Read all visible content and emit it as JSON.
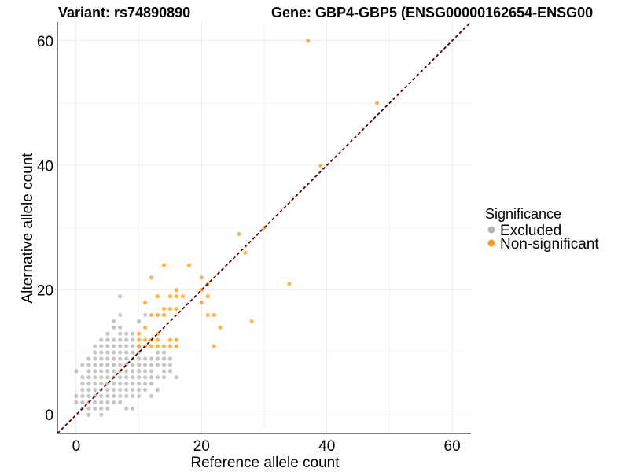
{
  "chart_data": {
    "type": "scatter",
    "title_left": "Variant: rs74890890",
    "title_right": "Gene: GBP4-GBP5 (ENSG00000162654-ENSG00",
    "xlabel": "Reference allele count",
    "ylabel": "Alternative allele count",
    "xlim": [
      -3,
      63
    ],
    "ylim": [
      -3,
      63
    ],
    "x_ticks": [
      0,
      20,
      40,
      60
    ],
    "y_ticks": [
      0,
      20,
      40,
      60
    ],
    "grid": true,
    "diagonal": {
      "type": "identity",
      "color": "#5a0000",
      "dashed": true
    },
    "legend": {
      "title": "Significance",
      "position": "right",
      "items": [
        {
          "label": "Excluded",
          "color": "#b3b3b3"
        },
        {
          "label": "Non-significant",
          "color": "#ff9a1a"
        }
      ]
    },
    "series": [
      {
        "name": "Excluded",
        "color": "#b3b3b3",
        "points": [
          [
            0,
            7
          ],
          [
            0,
            3
          ],
          [
            0,
            2
          ],
          [
            1,
            8
          ],
          [
            1,
            6
          ],
          [
            1,
            5
          ],
          [
            1,
            4
          ],
          [
            1,
            3
          ],
          [
            1,
            2
          ],
          [
            1,
            1
          ],
          [
            2,
            9
          ],
          [
            2,
            8
          ],
          [
            2,
            7
          ],
          [
            2,
            6
          ],
          [
            2,
            5
          ],
          [
            2,
            4
          ],
          [
            2,
            3
          ],
          [
            2,
            2
          ],
          [
            2,
            1
          ],
          [
            2,
            0
          ],
          [
            3,
            11
          ],
          [
            3,
            10
          ],
          [
            3,
            9
          ],
          [
            3,
            8
          ],
          [
            3,
            7
          ],
          [
            3,
            6
          ],
          [
            3,
            5
          ],
          [
            3,
            4
          ],
          [
            3,
            3
          ],
          [
            3,
            2
          ],
          [
            3,
            1
          ],
          [
            4,
            12
          ],
          [
            4,
            11
          ],
          [
            4,
            10
          ],
          [
            4,
            9
          ],
          [
            4,
            8
          ],
          [
            4,
            7
          ],
          [
            4,
            6
          ],
          [
            4,
            5
          ],
          [
            4,
            4
          ],
          [
            4,
            3
          ],
          [
            4,
            2
          ],
          [
            4,
            1
          ],
          [
            4,
            0
          ],
          [
            5,
            13
          ],
          [
            5,
            12
          ],
          [
            5,
            11
          ],
          [
            5,
            10
          ],
          [
            5,
            9
          ],
          [
            5,
            8
          ],
          [
            5,
            7
          ],
          [
            5,
            6
          ],
          [
            5,
            5
          ],
          [
            5,
            4
          ],
          [
            5,
            3
          ],
          [
            5,
            2
          ],
          [
            5,
            1
          ],
          [
            6,
            15
          ],
          [
            6,
            14
          ],
          [
            6,
            12
          ],
          [
            6,
            11
          ],
          [
            6,
            10
          ],
          [
            6,
            9
          ],
          [
            6,
            8
          ],
          [
            6,
            7
          ],
          [
            6,
            6
          ],
          [
            6,
            5
          ],
          [
            6,
            4
          ],
          [
            6,
            3
          ],
          [
            6,
            2
          ],
          [
            7,
            19
          ],
          [
            7,
            16
          ],
          [
            7,
            14
          ],
          [
            7,
            13
          ],
          [
            7,
            12
          ],
          [
            7,
            11
          ],
          [
            7,
            10
          ],
          [
            7,
            9
          ],
          [
            7,
            8
          ],
          [
            7,
            7
          ],
          [
            7,
            6
          ],
          [
            7,
            5
          ],
          [
            7,
            4
          ],
          [
            7,
            3
          ],
          [
            7,
            2
          ],
          [
            8,
            13
          ],
          [
            8,
            12
          ],
          [
            8,
            11
          ],
          [
            8,
            10
          ],
          [
            8,
            9
          ],
          [
            8,
            8
          ],
          [
            8,
            7
          ],
          [
            8,
            6
          ],
          [
            8,
            5
          ],
          [
            8,
            4
          ],
          [
            8,
            3
          ],
          [
            8,
            1
          ],
          [
            9,
            13
          ],
          [
            9,
            12
          ],
          [
            9,
            11
          ],
          [
            9,
            10
          ],
          [
            9,
            9
          ],
          [
            9,
            8
          ],
          [
            9,
            7
          ],
          [
            9,
            6
          ],
          [
            9,
            5
          ],
          [
            9,
            4
          ],
          [
            9,
            3
          ],
          [
            9,
            1
          ],
          [
            10,
            15
          ],
          [
            10,
            11
          ],
          [
            10,
            10
          ],
          [
            10,
            9
          ],
          [
            10,
            8
          ],
          [
            10,
            7
          ],
          [
            10,
            6
          ],
          [
            10,
            5
          ],
          [
            10,
            4
          ],
          [
            10,
            3
          ],
          [
            11,
            16
          ],
          [
            11,
            9
          ],
          [
            11,
            8
          ],
          [
            11,
            7
          ],
          [
            11,
            6
          ],
          [
            11,
            5
          ],
          [
            11,
            4
          ],
          [
            12,
            9
          ],
          [
            12,
            8
          ],
          [
            12,
            7
          ],
          [
            12,
            6
          ],
          [
            12,
            5
          ],
          [
            12,
            3
          ],
          [
            13,
            10
          ],
          [
            13,
            9
          ],
          [
            13,
            8
          ],
          [
            13,
            6
          ],
          [
            13,
            4
          ],
          [
            14,
            10
          ],
          [
            14,
            9
          ],
          [
            14,
            8
          ],
          [
            14,
            7
          ],
          [
            14,
            6
          ],
          [
            15,
            9
          ],
          [
            15,
            8
          ],
          [
            15,
            7
          ],
          [
            16,
            6
          ]
        ]
      },
      {
        "name": "Non-significant",
        "color": "#ff9a1a",
        "points": [
          [
            10,
            13
          ],
          [
            10,
            12
          ],
          [
            10,
            11
          ],
          [
            11,
            18
          ],
          [
            11,
            14
          ],
          [
            11,
            12
          ],
          [
            11,
            11
          ],
          [
            12,
            22
          ],
          [
            12,
            16
          ],
          [
            12,
            12
          ],
          [
            12,
            11
          ],
          [
            13,
            19
          ],
          [
            13,
            16
          ],
          [
            13,
            13
          ],
          [
            13,
            12
          ],
          [
            13,
            11
          ],
          [
            14,
            24
          ],
          [
            14,
            17
          ],
          [
            14,
            16
          ],
          [
            14,
            11
          ],
          [
            15,
            19
          ],
          [
            15,
            17
          ],
          [
            15,
            12
          ],
          [
            15,
            11
          ],
          [
            16,
            20
          ],
          [
            16,
            19
          ],
          [
            16,
            17
          ],
          [
            16,
            12
          ],
          [
            16,
            11
          ],
          [
            17,
            19
          ],
          [
            18,
            24
          ],
          [
            20,
            22
          ],
          [
            20,
            20
          ],
          [
            20,
            18
          ],
          [
            21,
            21
          ],
          [
            21,
            19
          ],
          [
            21,
            16
          ],
          [
            22,
            16
          ],
          [
            22,
            11
          ],
          [
            23,
            14
          ],
          [
            26,
            29
          ],
          [
            27,
            26
          ],
          [
            28,
            15
          ],
          [
            30,
            30
          ],
          [
            34,
            21
          ],
          [
            37,
            60
          ],
          [
            39,
            40
          ],
          [
            48,
            50
          ]
        ]
      }
    ]
  }
}
